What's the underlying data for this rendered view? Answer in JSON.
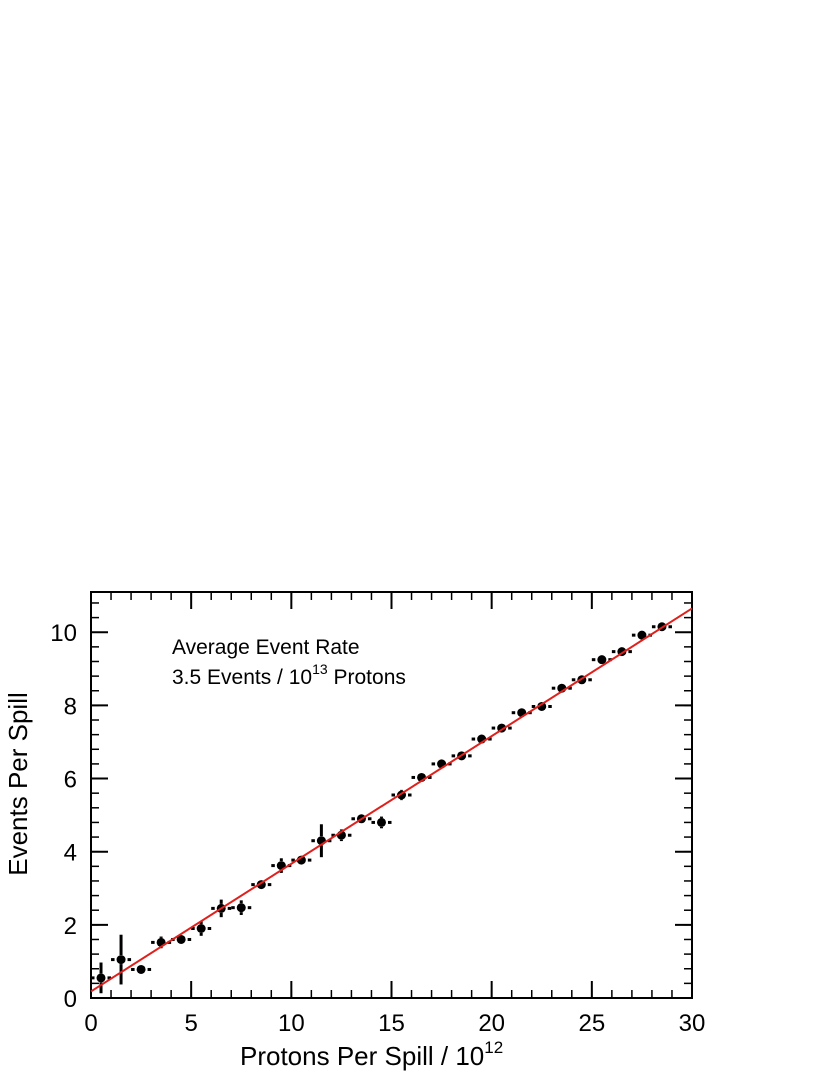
{
  "chart_data": {
    "type": "scatter",
    "xlabel": "Protons Per Spill / 10",
    "xlabel_sup": "12",
    "ylabel": "Events Per Spill",
    "xlim": [
      0,
      30
    ],
    "ylim": [
      0,
      11.1
    ],
    "xticks": [
      0,
      5,
      10,
      15,
      20,
      25,
      30
    ],
    "yticks": [
      0,
      2,
      4,
      6,
      8,
      10
    ],
    "grid": false,
    "annotation": {
      "line1": "Average Event Rate",
      "line2_prefix": "3.5 Events / 10",
      "line2_sup": "13",
      "line2_suffix": " Protons"
    },
    "fit": {
      "color": "#e0201c",
      "x": [
        0,
        30
      ],
      "y": [
        0.18,
        10.65
      ]
    },
    "points_color": "#000000",
    "points": [
      {
        "x": 0.5,
        "y": 0.55,
        "xerr": 0.5,
        "yerr": 0.42
      },
      {
        "x": 1.5,
        "y": 1.05,
        "xerr": 0.5,
        "yerr": 0.68
      },
      {
        "x": 2.5,
        "y": 0.78,
        "xerr": 0.5,
        "yerr": 0.1
      },
      {
        "x": 3.5,
        "y": 1.52,
        "xerr": 0.5,
        "yerr": 0.16
      },
      {
        "x": 4.5,
        "y": 1.6,
        "xerr": 0.5,
        "yerr": 0.08
      },
      {
        "x": 5.5,
        "y": 1.9,
        "xerr": 0.5,
        "yerr": 0.2
      },
      {
        "x": 6.5,
        "y": 2.45,
        "xerr": 0.5,
        "yerr": 0.24
      },
      {
        "x": 7.5,
        "y": 2.47,
        "xerr": 0.5,
        "yerr": 0.2
      },
      {
        "x": 8.5,
        "y": 3.1,
        "xerr": 0.5,
        "yerr": 0.08
      },
      {
        "x": 9.5,
        "y": 3.62,
        "xerr": 0.5,
        "yerr": 0.2
      },
      {
        "x": 10.5,
        "y": 3.77,
        "xerr": 0.5,
        "yerr": 0.1
      },
      {
        "x": 11.5,
        "y": 4.3,
        "xerr": 0.5,
        "yerr": 0.45
      },
      {
        "x": 12.5,
        "y": 4.45,
        "xerr": 0.5,
        "yerr": 0.16
      },
      {
        "x": 13.5,
        "y": 4.9,
        "xerr": 0.5,
        "yerr": 0.12
      },
      {
        "x": 14.5,
        "y": 4.8,
        "xerr": 0.5,
        "yerr": 0.16
      },
      {
        "x": 15.5,
        "y": 5.55,
        "xerr": 0.5,
        "yerr": 0.14
      },
      {
        "x": 16.5,
        "y": 6.03,
        "xerr": 0.5,
        "yerr": 0.08
      },
      {
        "x": 17.5,
        "y": 6.4,
        "xerr": 0.5,
        "yerr": 0.08
      },
      {
        "x": 18.5,
        "y": 6.62,
        "xerr": 0.5,
        "yerr": 0.08
      },
      {
        "x": 19.5,
        "y": 7.08,
        "xerr": 0.5,
        "yerr": 0.08
      },
      {
        "x": 20.5,
        "y": 7.38,
        "xerr": 0.5,
        "yerr": 0.08
      },
      {
        "x": 21.5,
        "y": 7.8,
        "xerr": 0.5,
        "yerr": 0.08
      },
      {
        "x": 22.5,
        "y": 7.97,
        "xerr": 0.5,
        "yerr": 0.08
      },
      {
        "x": 23.5,
        "y": 8.47,
        "xerr": 0.5,
        "yerr": 0.08
      },
      {
        "x": 24.5,
        "y": 8.7,
        "xerr": 0.5,
        "yerr": 0.08
      },
      {
        "x": 25.5,
        "y": 9.25,
        "xerr": 0.5,
        "yerr": 0.08
      },
      {
        "x": 26.5,
        "y": 9.47,
        "xerr": 0.5,
        "yerr": 0.08
      },
      {
        "x": 27.5,
        "y": 9.92,
        "xerr": 0.5,
        "yerr": 0.08
      },
      {
        "x": 28.5,
        "y": 10.15,
        "xerr": 0.5,
        "yerr": 0.08
      }
    ]
  }
}
